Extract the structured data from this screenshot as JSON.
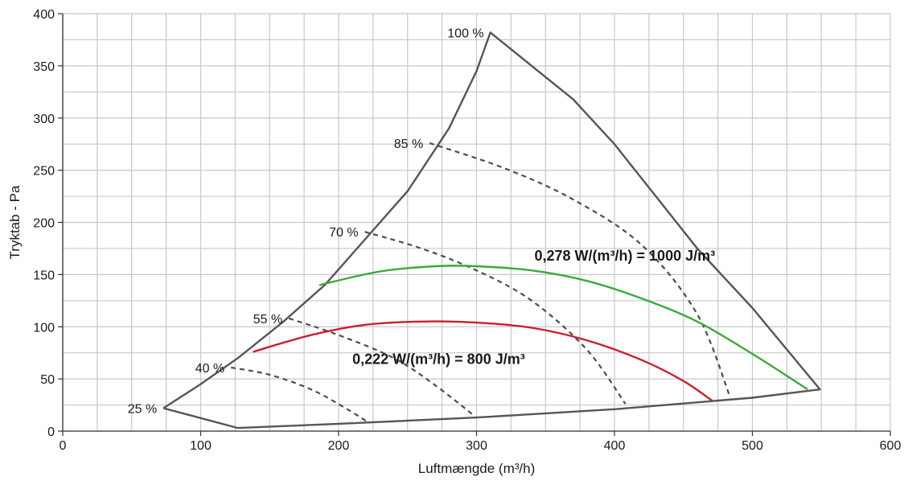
{
  "chart_data": {
    "type": "line",
    "xlabel": "Luftmængde (m³/h)",
    "ylabel": "Tryktab - Pa",
    "xlim": [
      0,
      600
    ],
    "ylim": [
      0,
      400
    ],
    "xticks": [
      0,
      100,
      200,
      300,
      400,
      500,
      600
    ],
    "yticks": [
      0,
      50,
      100,
      150,
      200,
      250,
      300,
      350,
      400
    ],
    "grid": true,
    "grid_step_x": 25,
    "grid_step_y": 25,
    "envelope": {
      "color": "#555555",
      "points": [
        [
          73,
          22
        ],
        [
          100,
          45
        ],
        [
          127,
          70
        ],
        [
          160,
          105
        ],
        [
          190,
          140
        ],
        [
          220,
          185
        ],
        [
          250,
          230
        ],
        [
          280,
          290
        ],
        [
          300,
          345
        ],
        [
          310,
          382
        ],
        [
          340,
          350
        ],
        [
          370,
          318
        ],
        [
          400,
          275
        ],
        [
          430,
          225
        ],
        [
          460,
          175
        ],
        [
          500,
          118
        ],
        [
          549,
          40
        ],
        [
          500,
          32
        ],
        [
          400,
          21
        ],
        [
          300,
          13
        ],
        [
          200,
          7
        ],
        [
          127,
          3
        ],
        [
          73,
          22
        ]
      ]
    },
    "percent_labels": [
      {
        "text": "100 %",
        "x": 310,
        "y": 382
      },
      {
        "text": "85 %",
        "x": 266,
        "y": 276
      },
      {
        "text": "70 %",
        "x": 219,
        "y": 191
      },
      {
        "text": "55 %",
        "x": 164,
        "y": 108
      },
      {
        "text": "40 %",
        "x": 122,
        "y": 61
      },
      {
        "text": "25 %",
        "x": 73,
        "y": 22
      }
    ],
    "dashed_curves": [
      {
        "color": "#4d4d4d",
        "points": [
          [
            266,
            276
          ],
          [
            320,
            252
          ],
          [
            370,
            222
          ],
          [
            420,
            178
          ],
          [
            460,
            112
          ],
          [
            484,
            32
          ]
        ]
      },
      {
        "color": "#4d4d4d",
        "points": [
          [
            219,
            191
          ],
          [
            260,
            175
          ],
          [
            300,
            154
          ],
          [
            340,
            125
          ],
          [
            380,
            78
          ],
          [
            408,
            26
          ]
        ]
      },
      {
        "color": "#4d4d4d",
        "points": [
          [
            164,
            108
          ],
          [
            200,
            92
          ],
          [
            240,
            70
          ],
          [
            270,
            44
          ],
          [
            299,
            14
          ]
        ]
      },
      {
        "color": "#4d4d4d",
        "points": [
          [
            122,
            61
          ],
          [
            150,
            54
          ],
          [
            180,
            40
          ],
          [
            205,
            22
          ],
          [
            222,
            8
          ]
        ]
      }
    ],
    "series": [
      {
        "color": "#3aaa35",
        "label": "0,278 W/(m³/h) = 1000 J/m³",
        "points": [
          [
            186,
            140
          ],
          [
            230,
            153
          ],
          [
            270,
            158
          ],
          [
            300,
            158
          ],
          [
            340,
            154
          ],
          [
            380,
            144
          ],
          [
            420,
            127
          ],
          [
            460,
            105
          ],
          [
            500,
            74
          ],
          [
            540,
            40
          ]
        ]
      },
      {
        "color": "#c8202a",
        "label": "0,222 W/(m³/h) = 800 J/m³",
        "points": [
          [
            138,
            76
          ],
          [
            180,
            92
          ],
          [
            220,
            102
          ],
          [
            260,
            105
          ],
          [
            300,
            104
          ],
          [
            340,
            99
          ],
          [
            380,
            87
          ],
          [
            420,
            68
          ],
          [
            450,
            48
          ],
          [
            471,
            29
          ]
        ]
      }
    ],
    "annotations": [
      {
        "text": "0,278 W/(m³/h) = 1000 J/m³",
        "x": 342,
        "y": 168
      },
      {
        "text": "0,222 W/(m³/h) = 800 J/m³",
        "x": 210,
        "y": 69
      }
    ]
  }
}
